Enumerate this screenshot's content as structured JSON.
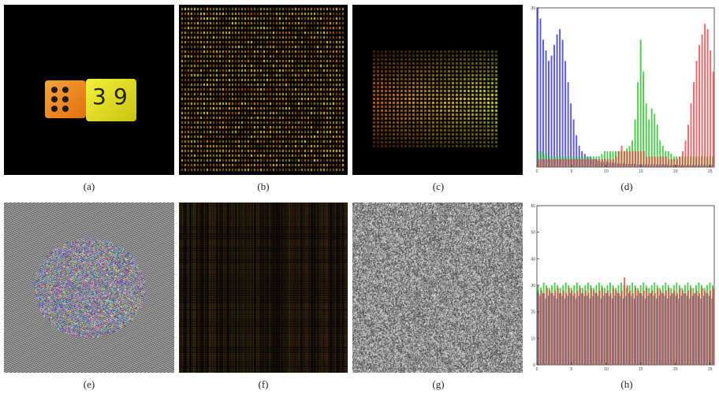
{
  "figure": {
    "panels": [
      {
        "id": "a",
        "caption": "(a)",
        "content": "dice-image"
      },
      {
        "id": "b",
        "caption": "(b)",
        "content": "scrambled-grid"
      },
      {
        "id": "c",
        "caption": "(c)",
        "content": "block-spread"
      },
      {
        "id": "d",
        "caption": "(d)",
        "content": "histogram-original"
      },
      {
        "id": "e",
        "caption": "(e)",
        "content": "diffused-pattern"
      },
      {
        "id": "f",
        "caption": "(f)",
        "content": "streak-pattern"
      },
      {
        "id": "g",
        "caption": "(g)",
        "content": "noise-cipher"
      },
      {
        "id": "h",
        "caption": "(h)",
        "content": "histogram-encrypted"
      }
    ],
    "dice": {
      "left_face_pips": 6,
      "right_face_numbers": [
        "3",
        "9"
      ],
      "colors": {
        "orange": "#f08a1c",
        "yellow": "#e9e51e",
        "background": "#000000"
      }
    }
  },
  "chart_data": [
    {
      "type": "bar",
      "panel": "d",
      "title": "",
      "xlabel": "",
      "ylabel": "",
      "x_ticks": [
        "0",
        "5",
        "10",
        "15",
        "20",
        "25"
      ],
      "y_ticks": [
        "30"
      ],
      "xlim": [
        0,
        25.6
      ],
      "ylim": [
        0,
        30
      ],
      "series": [
        {
          "color": "#3030e0",
          "values": [
            30,
            28,
            24,
            22,
            20,
            21,
            23,
            25,
            26,
            24,
            20,
            16,
            12,
            9,
            6,
            4,
            3,
            2.5,
            2,
            2,
            1.5,
            1.5,
            1.2,
            1,
            1,
            1,
            0.8,
            0.8,
            0.8,
            0.7,
            0.7,
            0.7,
            0.6,
            0.6,
            0.6,
            0.6,
            0.5,
            0.5,
            0.5,
            0.5,
            0.5,
            0.5,
            0.5,
            0.5,
            0.5,
            0.5,
            0.5,
            0.5,
            0.4,
            0.4,
            0.4,
            0.4,
            0.4,
            0.4,
            0.4,
            0.4,
            0.4,
            0.4,
            0.4,
            0.4,
            0.4,
            0.4,
            0.4,
            0.4
          ]
        },
        {
          "color": "#20c020",
          "values": [
            3,
            3,
            2.5,
            2.5,
            2,
            2,
            2,
            2,
            2,
            2,
            2,
            2,
            2,
            2,
            2,
            2,
            2,
            2,
            2,
            2,
            2,
            2,
            2,
            2.5,
            3,
            3,
            3,
            3,
            3,
            3,
            3,
            3,
            3.5,
            4,
            5,
            9,
            16,
            24,
            18,
            12,
            9,
            11,
            10,
            8,
            5,
            4,
            3,
            3,
            2.5,
            2,
            2,
            2,
            2,
            2,
            2,
            2,
            2,
            2,
            2,
            2,
            2,
            2,
            2,
            2
          ]
        },
        {
          "color": "#f04040",
          "values": [
            1.5,
            1.5,
            1.5,
            1.5,
            1.5,
            1.5,
            1.5,
            1.5,
            1.5,
            1.5,
            1.5,
            1.5,
            1.5,
            1.5,
            1.5,
            1.5,
            1.5,
            1.5,
            1.5,
            1.5,
            1.5,
            1.5,
            1.5,
            1.5,
            1.5,
            1.5,
            1.5,
            1.5,
            2,
            3,
            4,
            3,
            3,
            3,
            3,
            3,
            3,
            3,
            3,
            2,
            2,
            2,
            2,
            2,
            2,
            2,
            2,
            1.5,
            1.5,
            1.5,
            1.5,
            2,
            3,
            5,
            8,
            12,
            16,
            20,
            23,
            25,
            27,
            26,
            22,
            18
          ]
        }
      ]
    },
    {
      "type": "bar",
      "panel": "h",
      "title": "",
      "xlabel": "",
      "ylabel": "",
      "x_ticks": [
        "0",
        "5",
        "10",
        "15",
        "20",
        "25"
      ],
      "y_ticks": [
        "60",
        "50",
        "40",
        "30",
        "20",
        "10",
        "0"
      ],
      "xlim": [
        0,
        25.6
      ],
      "ylim": [
        0,
        60
      ],
      "series": [
        {
          "color": "#3030e0",
          "values": [
            28,
            26,
            27,
            25,
            26,
            27,
            26,
            25,
            27,
            26,
            25,
            26,
            27,
            26,
            25,
            26,
            27,
            26,
            26,
            25,
            26,
            27,
            26,
            25,
            26,
            27,
            26,
            25,
            26,
            27,
            26,
            25,
            26,
            27,
            26,
            25,
            26,
            27,
            26,
            25,
            26,
            27,
            26,
            25,
            26,
            27,
            26,
            25,
            26,
            27,
            26,
            25,
            26,
            27,
            26,
            25,
            26,
            27,
            26,
            25,
            26,
            27,
            26,
            25
          ]
        },
        {
          "color": "#20c020",
          "values": [
            30,
            29,
            31,
            30,
            29,
            30,
            31,
            30,
            29,
            30,
            31,
            30,
            29,
            30,
            31,
            30,
            29,
            30,
            31,
            30,
            29,
            30,
            31,
            30,
            29,
            30,
            31,
            30,
            29,
            30,
            31,
            30,
            29,
            30,
            31,
            30,
            29,
            30,
            31,
            30,
            29,
            30,
            31,
            30,
            29,
            30,
            31,
            30,
            29,
            30,
            31,
            30,
            29,
            30,
            31,
            30,
            29,
            30,
            31,
            30,
            29,
            30,
            31,
            30
          ]
        },
        {
          "color": "#f04040",
          "values": [
            27,
            28,
            27,
            29,
            28,
            27,
            28,
            29,
            27,
            28,
            27,
            29,
            28,
            27,
            28,
            29,
            27,
            28,
            27,
            29,
            28,
            27,
            28,
            29,
            27,
            28,
            27,
            29,
            28,
            27,
            28,
            33,
            30,
            28,
            27,
            29,
            28,
            27,
            28,
            29,
            27,
            28,
            27,
            29,
            28,
            27,
            28,
            29,
            27,
            28,
            27,
            29,
            28,
            27,
            28,
            29,
            27,
            28,
            27,
            29,
            28,
            27,
            28,
            29
          ]
        }
      ]
    }
  ]
}
